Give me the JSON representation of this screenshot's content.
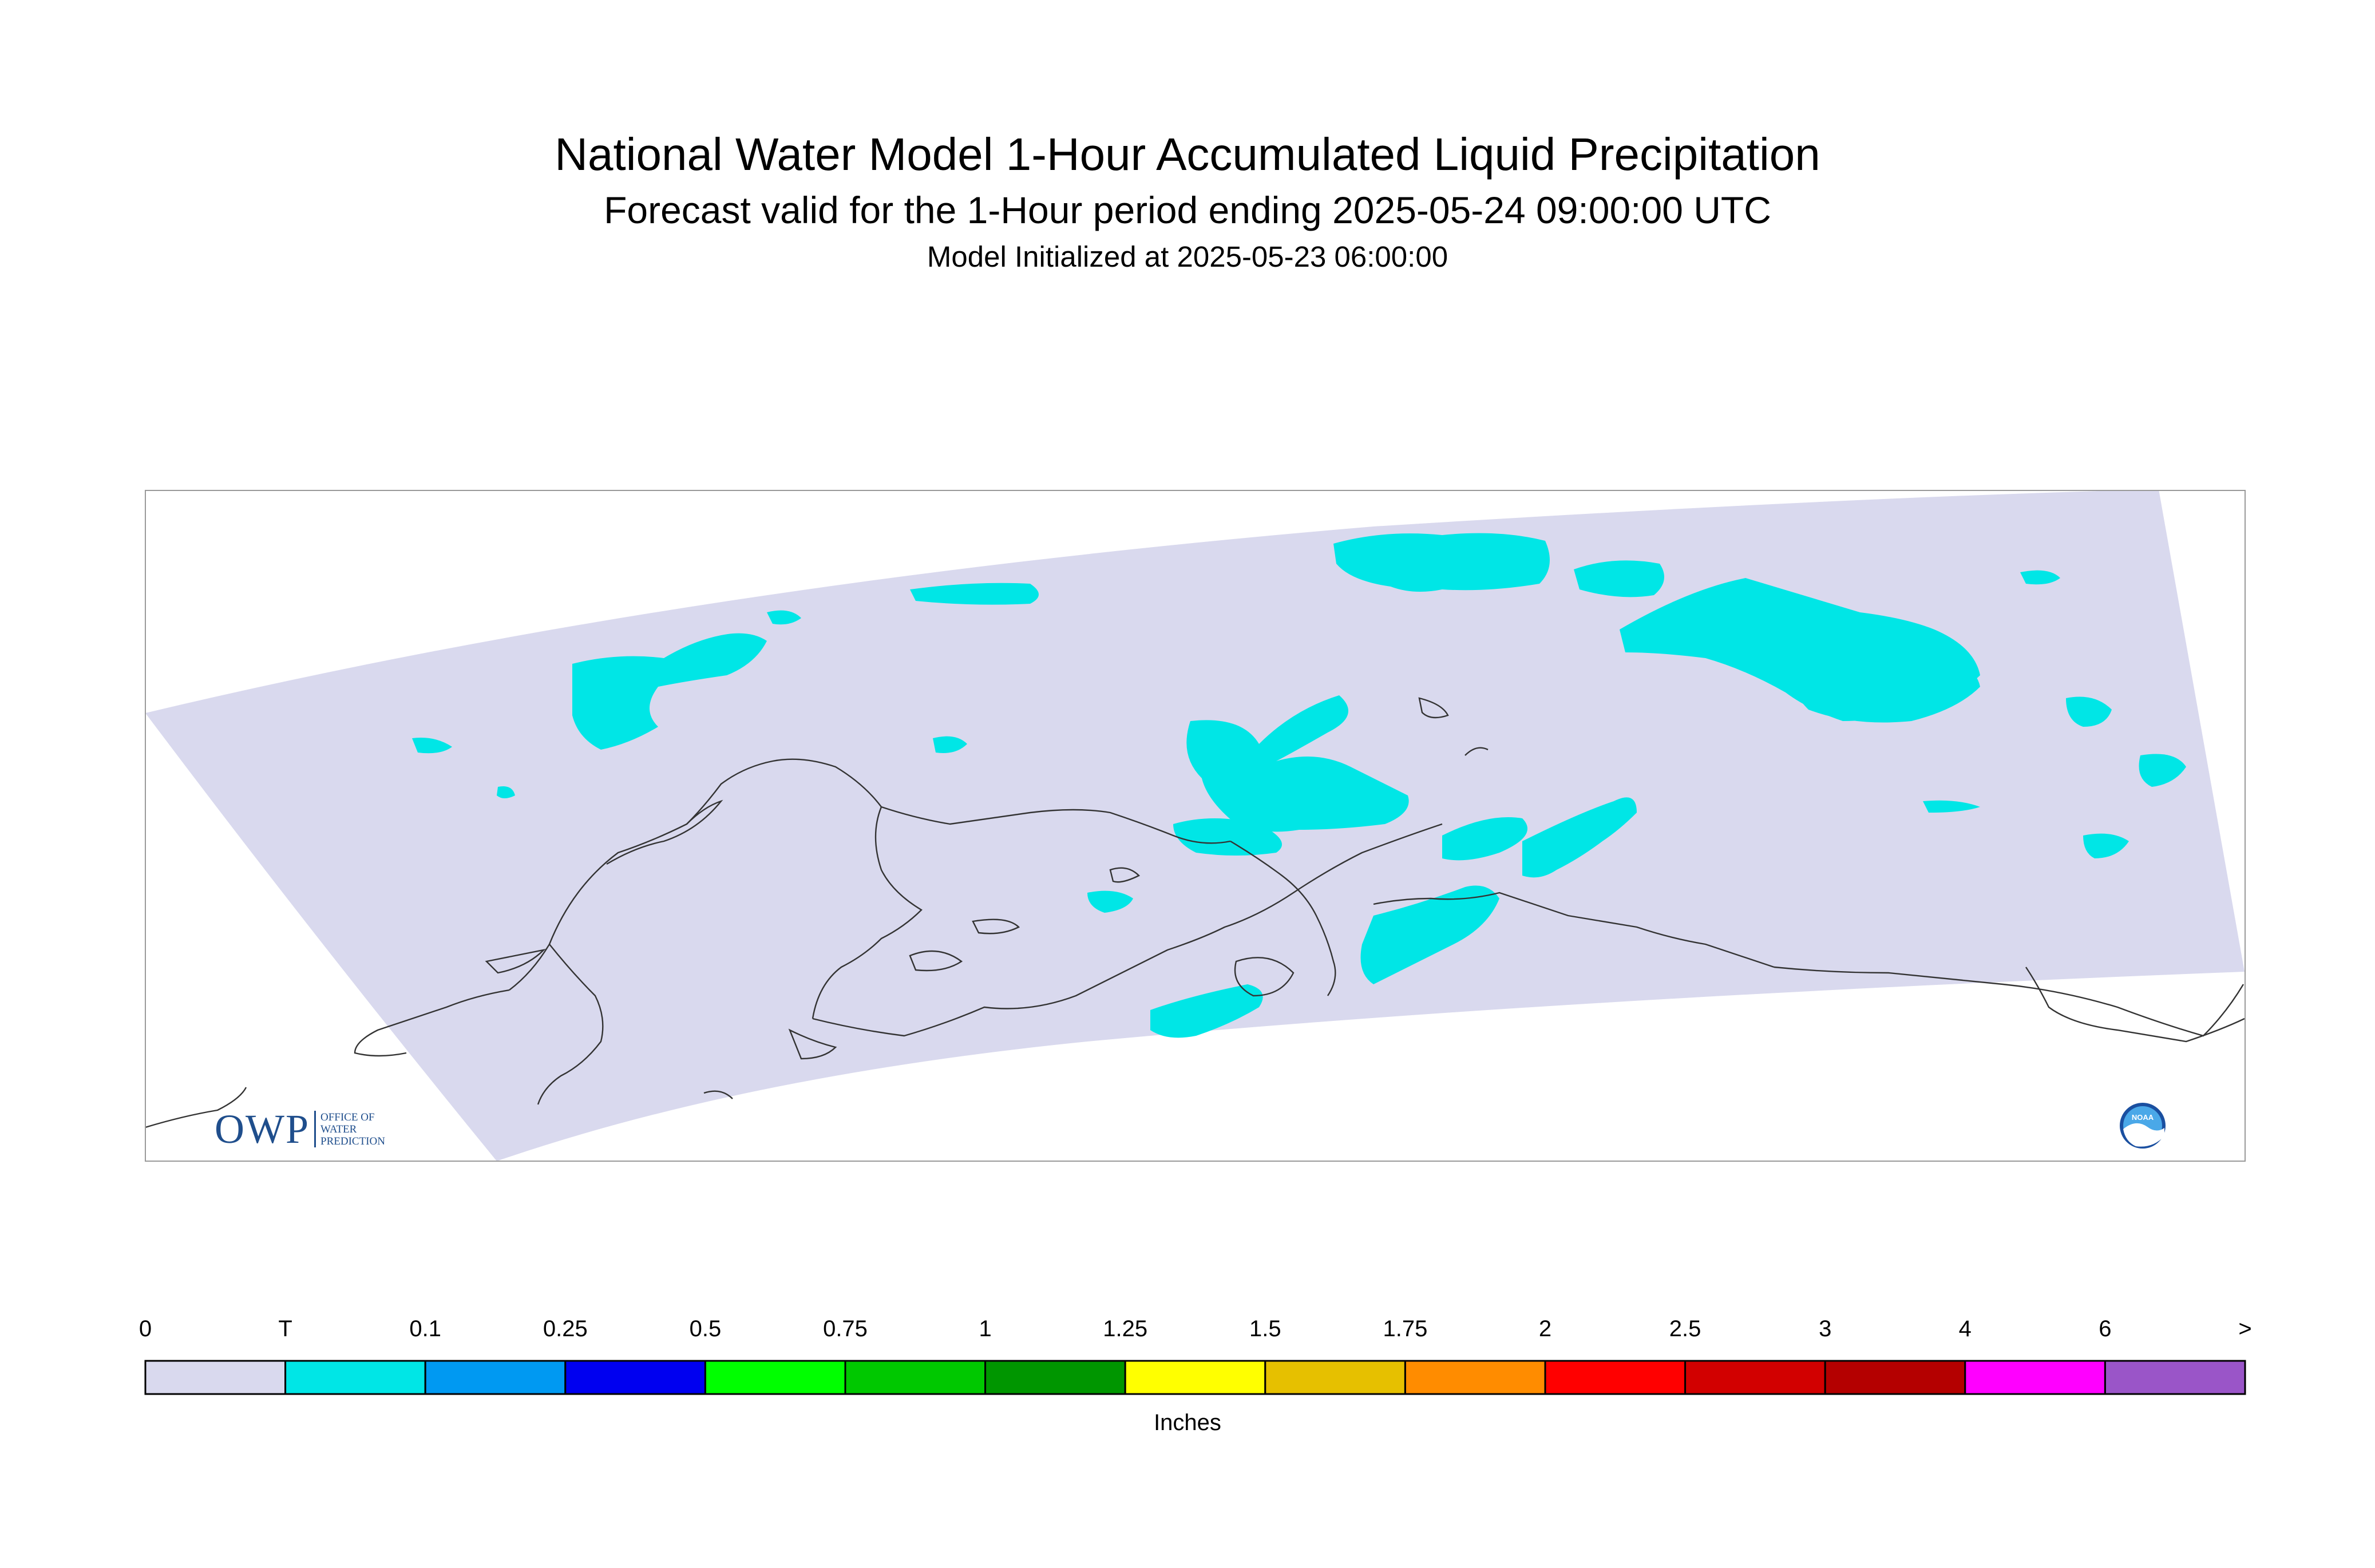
{
  "header": {
    "title": "National Water Model 1-Hour Accumulated Liquid Precipitation",
    "subtitle": "Forecast valid for the 1-Hour period ending 2025-05-24 09:00:00 UTC",
    "init_line": "Model Initialized at 2025-05-23 06:00:00"
  },
  "legend": {
    "units": "Inches",
    "labels": [
      "0",
      "T",
      "0.1",
      "0.25",
      "0.5",
      "0.75",
      "1",
      "1.25",
      "1.5",
      "1.75",
      "2",
      "2.5",
      "3",
      "4",
      "6",
      ">"
    ],
    "bins": [
      {
        "color": "#d9d9ee"
      },
      {
        "color": "#00e6e6"
      },
      {
        "color": "#0099f2"
      },
      {
        "color": "#0000f0"
      },
      {
        "color": "#00ff00"
      },
      {
        "color": "#00c800"
      },
      {
        "color": "#009600"
      },
      {
        "color": "#ffff00"
      },
      {
        "color": "#e6c000"
      },
      {
        "color": "#ff8c00"
      },
      {
        "color": "#ff0000"
      },
      {
        "color": "#d20000"
      },
      {
        "color": "#b40000"
      },
      {
        "color": "#ff00ff"
      },
      {
        "color": "#9a55c8"
      }
    ]
  },
  "map": {
    "domain_fill": "#d9d9ee",
    "precip_color": "#00e6e6",
    "coastline_color": "#333333",
    "precip_category": "T"
  },
  "logos": {
    "owp_letters": "OWP",
    "owp_lines": [
      "OFFICE OF",
      "WATER",
      "PREDICTION"
    ],
    "noaa_text": "NOAA"
  }
}
